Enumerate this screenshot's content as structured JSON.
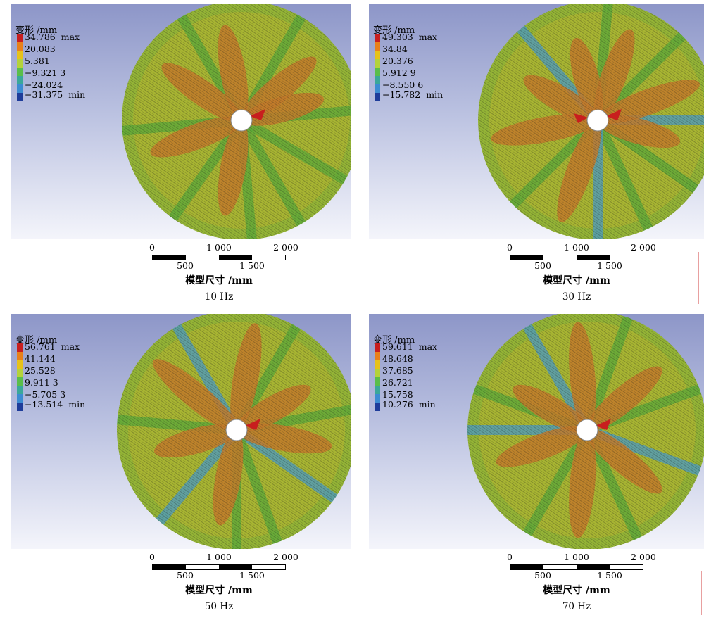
{
  "panels": [
    {
      "legend_title": "变形 /mm",
      "legend_values": [
        "34.786",
        "20.083",
        "5.381",
        "−9.321 3",
        "−24.024",
        "−31.375"
      ],
      "max_label": "max",
      "min_label": "min",
      "scale_ticks_top": [
        "0",
        "1 000",
        "2 000"
      ],
      "scale_ticks_bottom": [
        "500",
        "1 500"
      ],
      "axis_label": "模型尺寸 /mm",
      "caption": "10 Hz"
    },
    {
      "legend_title": "变形 /mm",
      "legend_values": [
        "49.303",
        "34.84",
        "20.376",
        "5.912 9",
        "−8.550 6",
        "−15.782"
      ],
      "max_label": "max",
      "min_label": "min",
      "scale_ticks_top": [
        "0",
        "1 000",
        "2 000"
      ],
      "scale_ticks_bottom": [
        "500",
        "1 500"
      ],
      "axis_label": "模型尺寸 /mm",
      "caption": "30 Hz"
    },
    {
      "legend_title": "变形 /mm",
      "legend_values": [
        "56.761",
        "41.144",
        "25.528",
        "9.911 3",
        "−5.705 3",
        "−13.514"
      ],
      "max_label": "max",
      "min_label": "min",
      "scale_ticks_top": [
        "0",
        "1 000",
        "2 000"
      ],
      "scale_ticks_bottom": [
        "500",
        "1 500"
      ],
      "axis_label": "模型尺寸 /mm",
      "caption": "50 Hz"
    },
    {
      "legend_title": "变形 /mm",
      "legend_values": [
        "59.611",
        "48.648",
        "37.685",
        "26.721",
        "15.758",
        "10.276"
      ],
      "max_label": "max",
      "min_label": "min",
      "scale_ticks_top": [
        "0",
        "1 000",
        "2 000"
      ],
      "scale_ticks_bottom": [
        "500",
        "1 500"
      ],
      "axis_label": "模型尺寸 /mm",
      "caption": "70 Hz"
    }
  ],
  "colors": {
    "colormap": [
      "#c81e1e",
      "#e8801a",
      "#e6c21a",
      "#b4d23a",
      "#5abe4a",
      "#3aa89a",
      "#3c8cd2",
      "#1e3c9a"
    ],
    "disk_base": "#a8b532",
    "petal": "#c27a2a",
    "spoke": "#5aa83a",
    "background_top": "#8d96c8",
    "background_bottom": "#f4f5fb"
  }
}
